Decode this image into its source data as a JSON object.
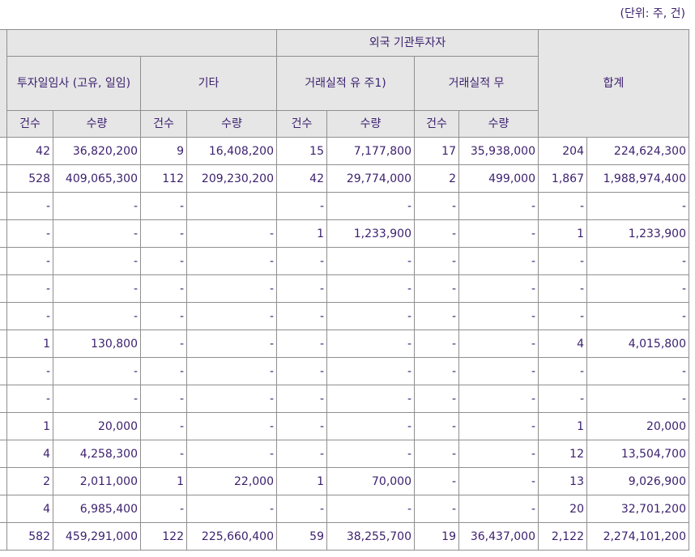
{
  "unit_label": "(단위: 주, 건)",
  "header": {
    "group_foreign": "외국 기관투자자",
    "group_total": "합계",
    "sub_investment": "투자일임사 (고유, 일임)",
    "sub_other": "기타",
    "sub_trade_yes": "거래실적 유 주1)",
    "sub_trade_no": "거래실적 무",
    "col_count": "건수",
    "col_qty": "수량"
  },
  "rows": [
    [
      "42",
      "36,820,200",
      "9",
      "16,408,200",
      "15",
      "7,177,800",
      "17",
      "35,938,000",
      "204",
      "224,624,300"
    ],
    [
      "528",
      "409,065,300",
      "112",
      "209,230,200",
      "42",
      "29,774,000",
      "2",
      "499,000",
      "1,867",
      "1,988,974,400"
    ],
    [
      "-",
      "-",
      "-",
      "",
      "-",
      "-",
      "-",
      "-",
      "-",
      "-"
    ],
    [
      "-",
      "-",
      "-",
      "-",
      "1",
      "1,233,900",
      "-",
      "-",
      "1",
      "1,233,900"
    ],
    [
      "-",
      "-",
      "-",
      "-",
      "-",
      "-",
      "-",
      "-",
      "-",
      "-"
    ],
    [
      "-",
      "-",
      "-",
      "-",
      "-",
      "-",
      "-",
      "-",
      "-",
      "-"
    ],
    [
      "-",
      "-",
      "-",
      "-",
      "-",
      "-",
      "-",
      "-",
      "-",
      "-"
    ],
    [
      "1",
      "130,800",
      "-",
      "-",
      "-",
      "-",
      "-",
      "-",
      "4",
      "4,015,800"
    ],
    [
      "-",
      "-",
      "-",
      "-",
      "-",
      "-",
      "-",
      "-",
      "-",
      "-"
    ],
    [
      "-",
      "-",
      "-",
      "-",
      "-",
      "-",
      "-",
      "-",
      "-",
      "-"
    ],
    [
      "1",
      "20,000",
      "-",
      "-",
      "-",
      "-",
      "-",
      "-",
      "1",
      "20,000"
    ],
    [
      "4",
      "4,258,300",
      "-",
      "-",
      "-",
      "-",
      "-",
      "-",
      "12",
      "13,504,700"
    ],
    [
      "2",
      "2,011,000",
      "1",
      "22,000",
      "1",
      "70,000",
      "-",
      "-",
      "13",
      "9,026,900"
    ],
    [
      "4",
      "6,985,400",
      "-",
      "-",
      "-",
      "-",
      "-",
      "-",
      "20",
      "32,701,200"
    ],
    [
      "582",
      "459,291,000",
      "122",
      "225,660,400",
      "59",
      "38,255,700",
      "19",
      "36,437,000",
      "2,122",
      "2,274,101,200"
    ]
  ]
}
